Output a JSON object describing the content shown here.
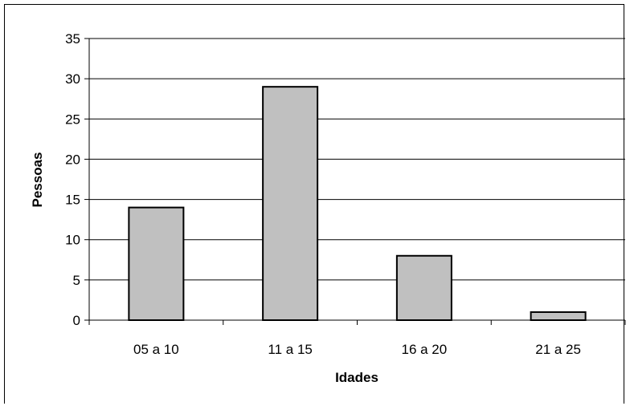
{
  "chart_data": {
    "type": "bar",
    "categories": [
      "05 a 10",
      "11 a 15",
      "16 a 20",
      "21 a 25"
    ],
    "values": [
      14,
      29,
      8,
      1
    ],
    "xlabel": "Idades",
    "ylabel": "Pessoas",
    "ylim": [
      0,
      35
    ],
    "yticks": [
      0,
      5,
      10,
      15,
      20,
      25,
      30,
      35
    ],
    "grid": true,
    "legend": "none",
    "colors": {
      "bar_fill": "#c0c0c0",
      "bar_stroke": "#000000",
      "grid": "#000000"
    }
  }
}
